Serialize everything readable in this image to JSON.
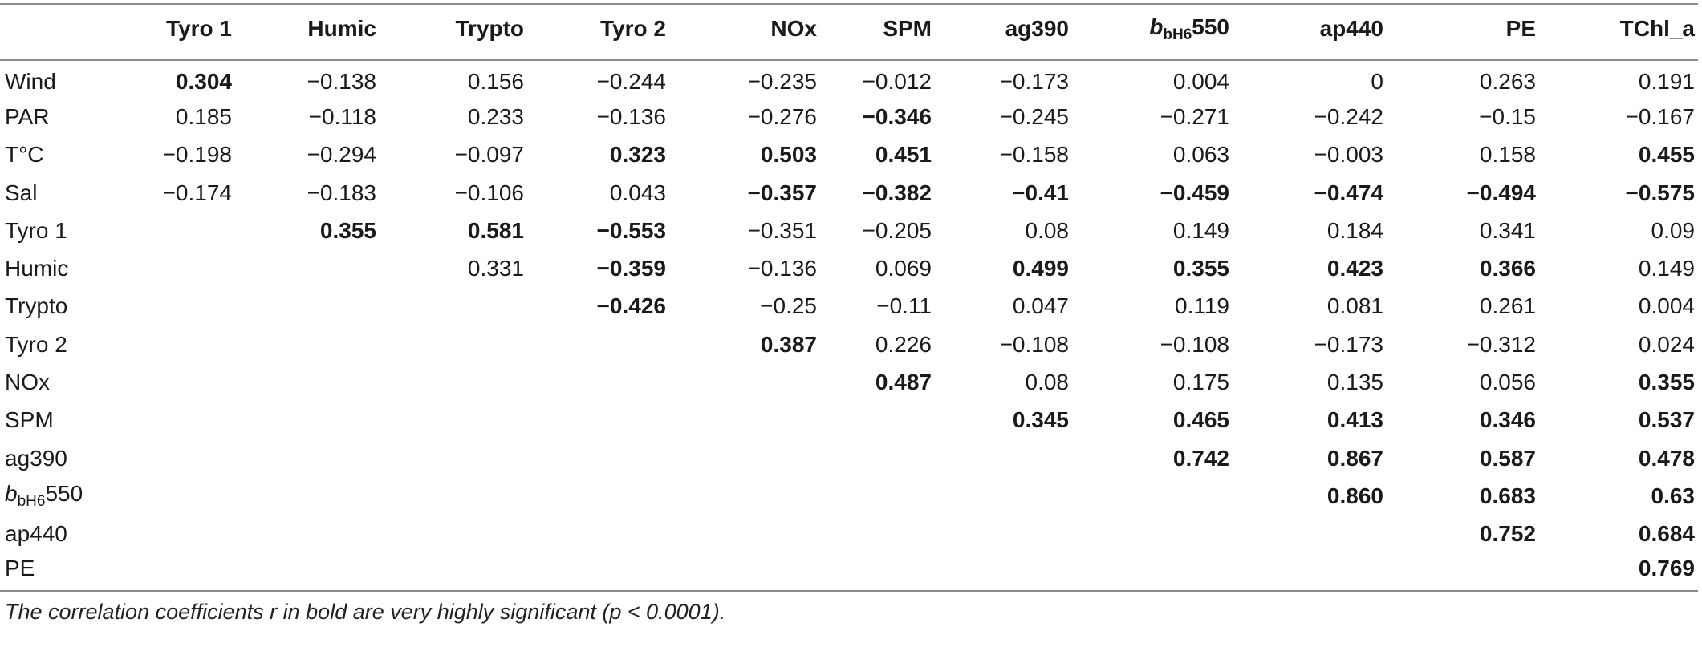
{
  "table": {
    "columns": [
      {
        "label": "Tyro 1"
      },
      {
        "label": "Humic"
      },
      {
        "label": "Trypto"
      },
      {
        "label": "Tyro 2"
      },
      {
        "label": "NOx"
      },
      {
        "label": "SPM"
      },
      {
        "label": "ag390"
      },
      {
        "label": "b",
        "sub": "bH6",
        "suffix": "550",
        "italic": true
      },
      {
        "label": "ap440"
      },
      {
        "label": "PE"
      },
      {
        "label": "TChl_a"
      }
    ],
    "rows": [
      {
        "label": "Wind",
        "cells": [
          {
            "v": "0.304",
            "b": true
          },
          {
            "v": "−0.138"
          },
          {
            "v": "0.156"
          },
          {
            "v": "−0.244"
          },
          {
            "v": "−0.235"
          },
          {
            "v": "−0.012"
          },
          {
            "v": "−0.173"
          },
          {
            "v": "0.004"
          },
          {
            "v": "0"
          },
          {
            "v": "0.263"
          },
          {
            "v": "0.191"
          }
        ]
      },
      {
        "label": "PAR",
        "cells": [
          {
            "v": "0.185"
          },
          {
            "v": "−0.118"
          },
          {
            "v": "0.233"
          },
          {
            "v": "−0.136"
          },
          {
            "v": "−0.276"
          },
          {
            "v": "−0.346",
            "b": true
          },
          {
            "v": "−0.245"
          },
          {
            "v": "−0.271"
          },
          {
            "v": "−0.242"
          },
          {
            "v": "−0.15"
          },
          {
            "v": "−0.167"
          }
        ]
      },
      {
        "label": "T°C",
        "cells": [
          {
            "v": "−0.198"
          },
          {
            "v": "−0.294"
          },
          {
            "v": "−0.097"
          },
          {
            "v": "0.323",
            "b": true
          },
          {
            "v": "0.503",
            "b": true
          },
          {
            "v": "0.451",
            "b": true
          },
          {
            "v": "−0.158"
          },
          {
            "v": "0.063"
          },
          {
            "v": "−0.003"
          },
          {
            "v": "0.158"
          },
          {
            "v": "0.455",
            "b": true
          }
        ]
      },
      {
        "label": "Sal",
        "cells": [
          {
            "v": "−0.174"
          },
          {
            "v": "−0.183"
          },
          {
            "v": "−0.106"
          },
          {
            "v": "0.043"
          },
          {
            "v": "−0.357",
            "b": true
          },
          {
            "v": "−0.382",
            "b": true
          },
          {
            "v": "−0.41",
            "b": true
          },
          {
            "v": "−0.459",
            "b": true
          },
          {
            "v": "−0.474",
            "b": true
          },
          {
            "v": "−0.494",
            "b": true
          },
          {
            "v": "−0.575",
            "b": true
          }
        ]
      },
      {
        "label": "Tyro 1",
        "cells": [
          {
            "v": ""
          },
          {
            "v": "0.355",
            "b": true
          },
          {
            "v": "0.581",
            "b": true
          },
          {
            "v": "−0.553",
            "b": true
          },
          {
            "v": "−0.351"
          },
          {
            "v": "−0.205"
          },
          {
            "v": "0.08"
          },
          {
            "v": "0.149"
          },
          {
            "v": "0.184"
          },
          {
            "v": "0.341"
          },
          {
            "v": "0.09"
          }
        ]
      },
      {
        "label": "Humic",
        "cells": [
          {
            "v": ""
          },
          {
            "v": ""
          },
          {
            "v": "0.331"
          },
          {
            "v": "−0.359",
            "b": true
          },
          {
            "v": "−0.136"
          },
          {
            "v": "0.069"
          },
          {
            "v": "0.499",
            "b": true
          },
          {
            "v": "0.355",
            "b": true
          },
          {
            "v": "0.423",
            "b": true
          },
          {
            "v": "0.366",
            "b": true
          },
          {
            "v": "0.149"
          }
        ]
      },
      {
        "label": "Trypto",
        "cells": [
          {
            "v": ""
          },
          {
            "v": ""
          },
          {
            "v": ""
          },
          {
            "v": "−0.426",
            "b": true
          },
          {
            "v": "−0.25"
          },
          {
            "v": "−0.11"
          },
          {
            "v": "0.047"
          },
          {
            "v": "0.119"
          },
          {
            "v": "0.081"
          },
          {
            "v": "0.261"
          },
          {
            "v": "0.004"
          }
        ]
      },
      {
        "label": "Tyro 2",
        "cells": [
          {
            "v": ""
          },
          {
            "v": ""
          },
          {
            "v": ""
          },
          {
            "v": ""
          },
          {
            "v": "0.387",
            "b": true
          },
          {
            "v": "0.226"
          },
          {
            "v": "−0.108"
          },
          {
            "v": "−0.108"
          },
          {
            "v": "−0.173"
          },
          {
            "v": "−0.312"
          },
          {
            "v": "0.024"
          }
        ]
      },
      {
        "label": "NOx",
        "cells": [
          {
            "v": ""
          },
          {
            "v": ""
          },
          {
            "v": ""
          },
          {
            "v": ""
          },
          {
            "v": ""
          },
          {
            "v": "0.487",
            "b": true
          },
          {
            "v": "0.08"
          },
          {
            "v": "0.175"
          },
          {
            "v": "0.135"
          },
          {
            "v": "0.056"
          },
          {
            "v": "0.355",
            "b": true
          }
        ]
      },
      {
        "label": "SPM",
        "cells": [
          {
            "v": ""
          },
          {
            "v": ""
          },
          {
            "v": ""
          },
          {
            "v": ""
          },
          {
            "v": ""
          },
          {
            "v": ""
          },
          {
            "v": "0.345",
            "b": true
          },
          {
            "v": "0.465",
            "b": true
          },
          {
            "v": "0.413",
            "b": true
          },
          {
            "v": "0.346",
            "b": true
          },
          {
            "v": "0.537",
            "b": true
          }
        ]
      },
      {
        "label": "ag390",
        "cells": [
          {
            "v": ""
          },
          {
            "v": ""
          },
          {
            "v": ""
          },
          {
            "v": ""
          },
          {
            "v": ""
          },
          {
            "v": ""
          },
          {
            "v": ""
          },
          {
            "v": "0.742",
            "b": true
          },
          {
            "v": "0.867",
            "b": true
          },
          {
            "v": "0.587",
            "b": true
          },
          {
            "v": "0.478",
            "b": true
          }
        ]
      },
      {
        "label": "b",
        "sub": "bH6",
        "suffix": "550",
        "italic": true,
        "cells": [
          {
            "v": ""
          },
          {
            "v": ""
          },
          {
            "v": ""
          },
          {
            "v": ""
          },
          {
            "v": ""
          },
          {
            "v": ""
          },
          {
            "v": ""
          },
          {
            "v": ""
          },
          {
            "v": "0.860",
            "b": true
          },
          {
            "v": "0.683",
            "b": true
          },
          {
            "v": "0.63",
            "b": true
          }
        ]
      },
      {
        "label": "ap440",
        "cells": [
          {
            "v": ""
          },
          {
            "v": ""
          },
          {
            "v": ""
          },
          {
            "v": ""
          },
          {
            "v": ""
          },
          {
            "v": ""
          },
          {
            "v": ""
          },
          {
            "v": ""
          },
          {
            "v": ""
          },
          {
            "v": "0.752",
            "b": true
          },
          {
            "v": "0.684",
            "b": true
          }
        ]
      },
      {
        "label": "PE",
        "cells": [
          {
            "v": ""
          },
          {
            "v": ""
          },
          {
            "v": ""
          },
          {
            "v": ""
          },
          {
            "v": ""
          },
          {
            "v": ""
          },
          {
            "v": ""
          },
          {
            "v": ""
          },
          {
            "v": ""
          },
          {
            "v": ""
          },
          {
            "v": "0.769",
            "b": true
          }
        ]
      }
    ]
  },
  "footnote": "The correlation coefficients r in bold are very highly significant (p < 0.0001)."
}
